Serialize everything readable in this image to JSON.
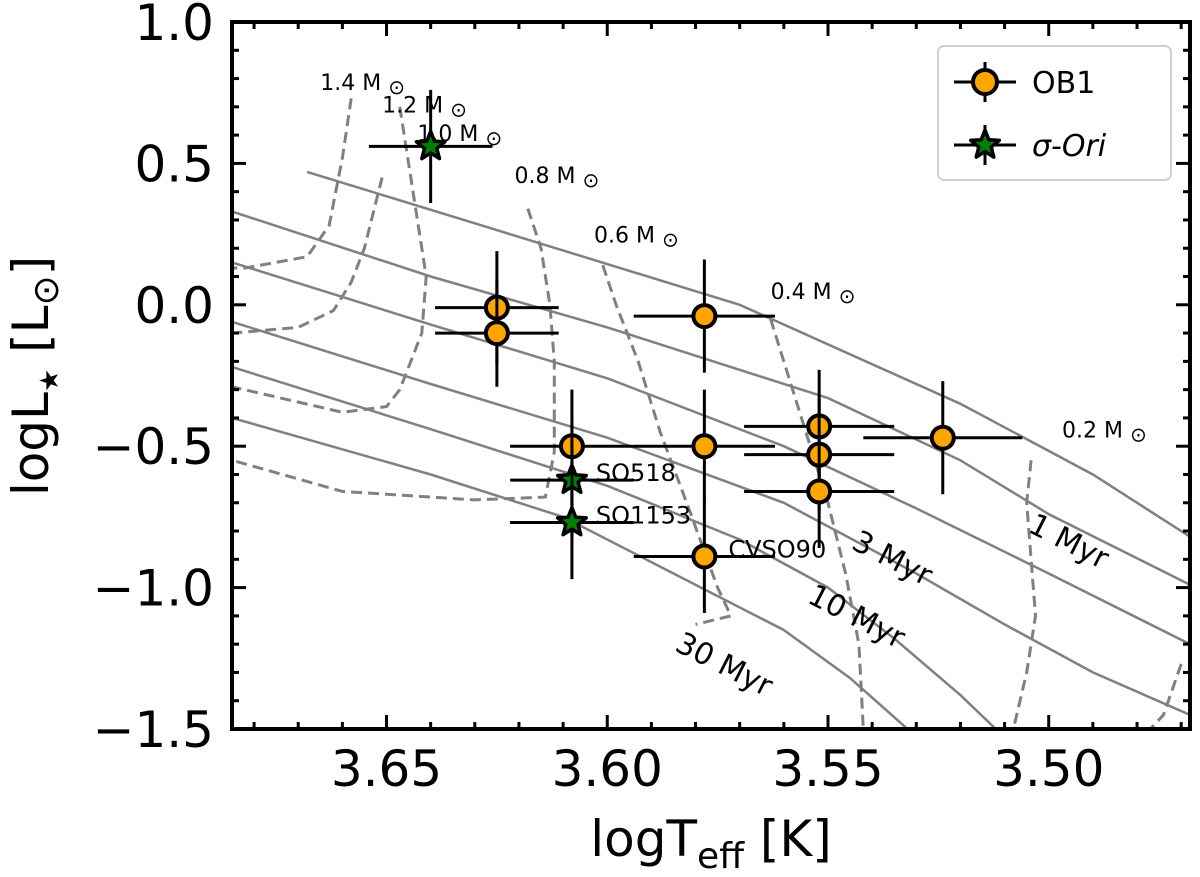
{
  "chart_data": {
    "type": "scatter",
    "title": "",
    "xlabel": "logT",
    "xlabel_sub": "eff",
    "xlabel_unit": " [K]",
    "ylabel_main": "logL",
    "ylabel_sub": "★",
    "ylabel_unit": " [L",
    "ylabel_unit_sub": "⊙",
    "ylabel_unit_close": "]",
    "xlim": [
      3.685,
      3.468
    ],
    "ylim": [
      -1.5,
      1.0
    ],
    "x_ticks": [
      3.65,
      3.6,
      3.55,
      3.5
    ],
    "x_tick_labels": [
      "3.65",
      "3.60",
      "3.55",
      "3.50"
    ],
    "y_ticks": [
      1.0,
      0.5,
      0.0,
      -0.5,
      -1.0,
      -1.5
    ],
    "y_tick_labels": [
      "1.0",
      "0.5",
      "0.0",
      "−0.5",
      "−1.0",
      "−1.5"
    ],
    "legend": {
      "position": "top-right",
      "entries": [
        {
          "label": "OB1",
          "marker": "circle"
        },
        {
          "label": "σ-Ori",
          "marker": "star"
        }
      ]
    },
    "colors": {
      "ob1": "#FFA500",
      "sigma_ori": "#008000",
      "model": "#808080"
    },
    "series": [
      {
        "name": "OB1",
        "marker": "circle",
        "points": [
          {
            "x": 3.625,
            "y": -0.01,
            "xerr": 0.014,
            "yerr": 0.2
          },
          {
            "x": 3.625,
            "y": -0.1,
            "xerr": 0.014,
            "yerr": 0.19
          },
          {
            "x": 3.578,
            "y": -0.04,
            "xerr": 0.016,
            "yerr": 0.2
          },
          {
            "x": 3.608,
            "y": -0.5,
            "xerr": 0.014,
            "yerr": 0.2
          },
          {
            "x": 3.578,
            "y": -0.5,
            "xerr": 0.016,
            "yerr": 0.2
          },
          {
            "x": 3.552,
            "y": -0.43,
            "xerr": 0.017,
            "yerr": 0.2
          },
          {
            "x": 3.552,
            "y": -0.53,
            "xerr": 0.017,
            "yerr": 0.2
          },
          {
            "x": 3.552,
            "y": -0.66,
            "xerr": 0.017,
            "yerr": 0.2
          },
          {
            "x": 3.524,
            "y": -0.47,
            "xerr": 0.018,
            "yerr": 0.2
          },
          {
            "x": 3.578,
            "y": -0.89,
            "xerr": 0.016,
            "yerr": 0.2,
            "label": "CVSO90"
          }
        ]
      },
      {
        "name": "σ-Ori",
        "marker": "star",
        "points": [
          {
            "x": 3.64,
            "y": 0.56,
            "xerr": 0.014,
            "yerr": 0.2
          },
          {
            "x": 3.608,
            "y": -0.62,
            "xerr": 0.014,
            "yerr": 0.2,
            "label": "SO518"
          },
          {
            "x": 3.608,
            "y": -0.77,
            "xerr": 0.014,
            "yerr": 0.2,
            "label": "SO1153"
          }
        ]
      }
    ],
    "isochrones": [
      {
        "label": "1 Myr",
        "label_x": 3.505,
        "label_y": -0.8,
        "points": [
          [
            3.668,
            0.47
          ],
          [
            3.62,
            0.24
          ],
          [
            3.57,
            0.0
          ],
          [
            3.52,
            -0.35
          ],
          [
            3.49,
            -0.6
          ],
          [
            3.468,
            -0.82
          ]
        ]
      },
      {
        "label": "",
        "points": [
          [
            3.685,
            0.33
          ],
          [
            3.64,
            0.1
          ],
          [
            3.6,
            -0.08
          ],
          [
            3.55,
            -0.33
          ],
          [
            3.52,
            -0.55
          ],
          [
            3.5,
            -0.74
          ],
          [
            3.468,
            -0.99
          ]
        ]
      },
      {
        "label": "3 Myr",
        "label_x": 3.545,
        "label_y": -0.86,
        "points": [
          [
            3.685,
            0.15
          ],
          [
            3.64,
            -0.07
          ],
          [
            3.6,
            -0.26
          ],
          [
            3.56,
            -0.5
          ],
          [
            3.53,
            -0.72
          ],
          [
            3.5,
            -0.95
          ],
          [
            3.468,
            -1.2
          ]
        ]
      },
      {
        "label": "10 Myr",
        "label_x": 3.555,
        "label_y": -1.05,
        "points": [
          [
            3.685,
            -0.06
          ],
          [
            3.64,
            -0.28
          ],
          [
            3.6,
            -0.47
          ],
          [
            3.56,
            -0.7
          ],
          [
            3.53,
            -0.95
          ],
          [
            3.51,
            -1.13
          ],
          [
            3.49,
            -1.3
          ],
          [
            3.468,
            -1.45
          ]
        ]
      },
      {
        "label": "",
        "points": [
          [
            3.685,
            -0.22
          ],
          [
            3.64,
            -0.44
          ],
          [
            3.6,
            -0.64
          ],
          [
            3.57,
            -0.83
          ],
          [
            3.55,
            -1.0
          ],
          [
            3.535,
            -1.18
          ],
          [
            3.52,
            -1.38
          ],
          [
            3.512,
            -1.5
          ]
        ]
      },
      {
        "label": "30 Myr",
        "label_x": 3.585,
        "label_y": -1.22,
        "points": [
          [
            3.685,
            -0.4
          ],
          [
            3.64,
            -0.6
          ],
          [
            3.61,
            -0.75
          ],
          [
            3.585,
            -0.95
          ],
          [
            3.56,
            -1.15
          ],
          [
            3.545,
            -1.32
          ],
          [
            3.532,
            -1.5
          ]
        ]
      }
    ],
    "mass_tracks": [
      {
        "label": "1.4 M",
        "label_x": 3.665,
        "label_y": 0.76,
        "points": [
          [
            3.658,
            0.73
          ],
          [
            3.66,
            0.52
          ],
          [
            3.663,
            0.28
          ],
          [
            3.668,
            0.17
          ],
          [
            3.682,
            0.13
          ],
          [
            3.685,
            0.13
          ]
        ]
      },
      {
        "label": "1.2 M",
        "label_x": 3.651,
        "label_y": 0.68,
        "points": [
          [
            3.651,
            0.45
          ],
          [
            3.655,
            0.2
          ],
          [
            3.658,
            0.08
          ],
          [
            3.662,
            -0.02
          ],
          [
            3.67,
            -0.08
          ],
          [
            3.685,
            -0.1
          ]
        ]
      },
      {
        "label": "1.0 M",
        "label_x": 3.643,
        "label_y": 0.58,
        "points": [
          [
            3.647,
            0.7
          ],
          [
            3.645,
            0.5
          ],
          [
            3.641,
            0.1
          ],
          [
            3.642,
            -0.1
          ],
          [
            3.647,
            -0.3
          ],
          [
            3.65,
            -0.36
          ],
          [
            3.66,
            -0.38
          ],
          [
            3.685,
            -0.29
          ]
        ]
      },
      {
        "label": "0.8 M",
        "label_x": 3.621,
        "label_y": 0.43,
        "points": [
          [
            3.618,
            0.34
          ],
          [
            3.615,
            0.2
          ],
          [
            3.613,
            0.0
          ],
          [
            3.612,
            -0.2
          ],
          [
            3.612,
            -0.52
          ],
          [
            3.614,
            -0.68
          ],
          [
            3.63,
            -0.69
          ],
          [
            3.66,
            -0.66
          ],
          [
            3.685,
            -0.55
          ]
        ]
      },
      {
        "label": "0.6 M",
        "label_x": 3.603,
        "label_y": 0.22,
        "points": [
          [
            3.601,
            0.14
          ],
          [
            3.598,
            0.0
          ],
          [
            3.593,
            -0.2
          ],
          [
            3.588,
            -0.45
          ],
          [
            3.582,
            -0.7
          ],
          [
            3.575,
            -1.0
          ],
          [
            3.572,
            -1.1
          ],
          [
            3.58,
            -1.13
          ]
        ]
      },
      {
        "label": "0.4 M",
        "label_x": 3.563,
        "label_y": 0.02,
        "points": [
          [
            3.563,
            -0.05
          ],
          [
            3.56,
            -0.2
          ],
          [
            3.555,
            -0.45
          ],
          [
            3.55,
            -0.7
          ],
          [
            3.546,
            -0.95
          ],
          [
            3.543,
            -1.2
          ],
          [
            3.542,
            -1.5
          ]
        ]
      },
      {
        "label": "0.2 M",
        "label_x": 3.497,
        "label_y": -0.47,
        "points": [
          [
            3.504,
            -0.55
          ],
          [
            3.505,
            -0.7
          ],
          [
            3.504,
            -0.9
          ],
          [
            3.503,
            -1.1
          ],
          [
            3.505,
            -1.3
          ],
          [
            3.508,
            -1.5
          ]
        ]
      },
      {
        "label": "",
        "points": [
          [
            3.47,
            -1.27
          ],
          [
            3.474,
            -1.45
          ],
          [
            3.477,
            -1.5
          ]
        ]
      }
    ]
  }
}
